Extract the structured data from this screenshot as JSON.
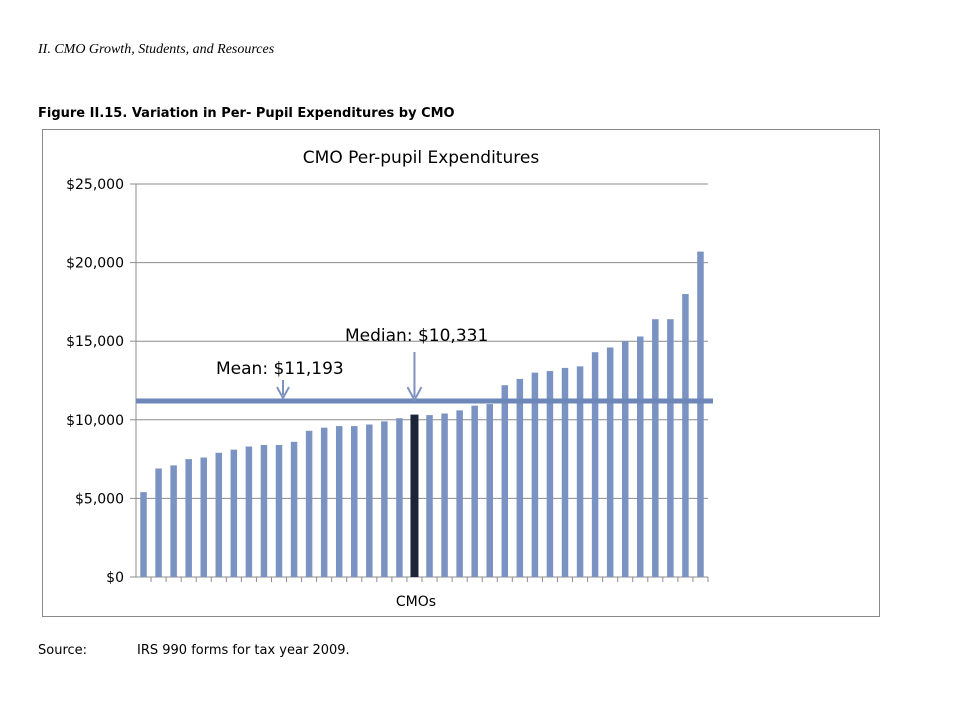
{
  "document": {
    "section_header": "II. CMO Growth, Students, and Resources",
    "figure_title": "Figure II.15. Variation in Per- Pupil Expenditures by CMO",
    "source_label": "Source:",
    "source_text": "IRS 990 forms for tax year 2009."
  },
  "colors": {
    "bar": "#7b93c2",
    "median_bar": "#1b2438",
    "mean_line": "#6d87b8",
    "grid": "#8c8c8c",
    "arrow": "#7d93bd"
  },
  "chart_data": {
    "type": "bar",
    "title": "CMO Per-pupil Expenditures",
    "xlabel": "CMOs",
    "ylabel": "",
    "ylim": [
      0,
      25000
    ],
    "yticks": [
      0,
      5000,
      10000,
      15000,
      20000,
      25000
    ],
    "ytick_labels": [
      "$0",
      "$5,000",
      "$10,000",
      "$15,000",
      "$20,000",
      "$25,000"
    ],
    "grid": true,
    "values": [
      5400,
      6900,
      7100,
      7500,
      7600,
      7900,
      8100,
      8300,
      8400,
      8400,
      8600,
      9300,
      9500,
      9600,
      9600,
      9700,
      9900,
      10100,
      10331,
      10300,
      10400,
      10600,
      10900,
      11000,
      12200,
      12600,
      13000,
      13100,
      13300,
      13400,
      14300,
      14600,
      15000,
      15300,
      16400,
      16400,
      18000,
      20700
    ],
    "median_index": 18,
    "mean": 11193,
    "mean_label": "Mean: $11,193",
    "median": 10331,
    "median_label": "Median: $10,331"
  }
}
